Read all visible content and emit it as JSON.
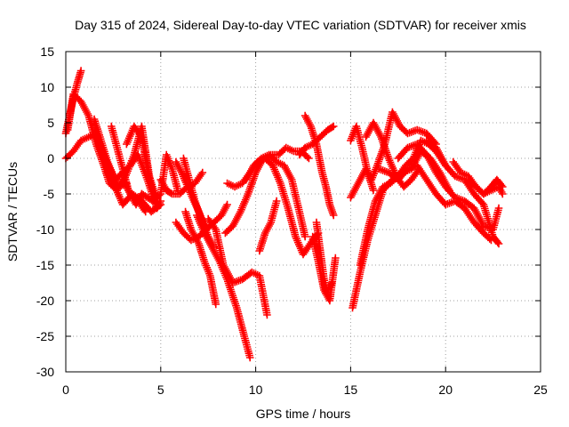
{
  "chart_data": {
    "type": "scatter",
    "title": "Day 315 of 2024, Sidereal Day-to-day VTEC variation (SDTVAR) for receiver xmis",
    "xlabel": "GPS time / hours",
    "ylabel": "SDTVAR / TECUs",
    "xlim": [
      0,
      25
    ],
    "ylim": [
      -30,
      15
    ],
    "xticks": [
      "0",
      "5",
      "10",
      "15",
      "20",
      "25"
    ],
    "yticks": [
      "15",
      "10",
      "5",
      "0",
      "-5",
      "-10",
      "-15",
      "-20",
      "-25",
      "-30"
    ],
    "grid": true,
    "marker": "+",
    "color": "#ff0000",
    "series": [
      {
        "x": [
          0.0,
          0.2,
          0.4,
          0.6,
          0.8
        ],
        "y": [
          3.5,
          6.0,
          8.5,
          10.5,
          12.3
        ]
      },
      {
        "x": [
          0.1,
          0.4,
          0.8,
          1.2,
          1.6,
          2.0,
          2.3,
          2.7,
          3.0,
          3.4,
          3.8,
          4.2
        ],
        "y": [
          4.0,
          9.0,
          8.0,
          6.0,
          2.0,
          -1.0,
          -3.5,
          -4.5,
          -3.0,
          -5.0,
          -6.0,
          -7.5
        ]
      },
      {
        "x": [
          0.0,
          0.4,
          0.8,
          1.2,
          1.6,
          2.0,
          2.4,
          2.8,
          3.2
        ],
        "y": [
          0.0,
          1.0,
          2.5,
          3.0,
          3.5,
          0.5,
          -2.0,
          -4.0,
          -3.5
        ]
      },
      {
        "x": [
          1.5,
          1.8,
          2.2,
          2.6,
          3.0,
          3.4,
          3.8,
          4.3,
          4.8
        ],
        "y": [
          5.5,
          3.0,
          -0.5,
          -3.0,
          -2.0,
          -1.0,
          0.5,
          -3.0,
          -7.0
        ]
      },
      {
        "x": [
          2.4,
          2.7,
          3.0,
          3.3,
          3.7,
          4.0
        ],
        "y": [
          4.5,
          1.5,
          -1.5,
          -4.5,
          -6.5,
          -5.0
        ]
      },
      {
        "x": [
          2.2,
          2.6,
          3.0,
          3.5,
          4.0,
          4.5,
          5.0
        ],
        "y": [
          -2.0,
          -4.0,
          -6.5,
          -5.0,
          -6.0,
          -7.5,
          -6.5
        ]
      },
      {
        "x": [
          3.0,
          3.3,
          3.6,
          4.0,
          4.4,
          4.8
        ],
        "y": [
          -3.5,
          -1.5,
          0.5,
          4.5,
          -2.5,
          -6.0
        ]
      },
      {
        "x": [
          3.2,
          3.6,
          4.0,
          4.4,
          4.8,
          5.0
        ],
        "y": [
          2.0,
          4.5,
          3.0,
          -3.0,
          -7.0,
          -6.0
        ]
      },
      {
        "x": [
          4.0,
          4.6,
          5.0,
          5.3,
          5.6,
          5.9
        ],
        "y": [
          -5.0,
          -6.0,
          -5.0,
          0.5,
          -1.5,
          -4.5
        ]
      },
      {
        "x": [
          5.0,
          5.3,
          5.6,
          6.0,
          6.4,
          6.8,
          7.2
        ],
        "y": [
          -3.0,
          -4.5,
          -5.0,
          -5.0,
          -4.0,
          -3.5,
          -2.0
        ]
      },
      {
        "x": [
          5.8,
          6.1,
          6.5,
          7.0,
          7.4,
          7.8,
          8.2,
          8.5
        ],
        "y": [
          -0.5,
          -2.0,
          -4.5,
          -7.5,
          -10.0,
          -9.0,
          -8.0,
          -6.5
        ]
      },
      {
        "x": [
          6.2,
          6.5,
          6.8,
          7.2,
          7.5,
          7.8
        ],
        "y": [
          0.0,
          -3.0,
          -6.0,
          -9.0,
          -11.0,
          -12.5
        ]
      },
      {
        "x": [
          6.3,
          6.6,
          7.0,
          7.3,
          7.6,
          7.9
        ],
        "y": [
          -7.5,
          -10.0,
          -12.0,
          -14.5,
          -16.5,
          -20.5
        ]
      },
      {
        "x": [
          5.8,
          6.2,
          6.6,
          7.0,
          7.4,
          7.8
        ],
        "y": [
          -9.0,
          -10.5,
          -11.5,
          -11.0,
          -10.0,
          -9.0
        ]
      },
      {
        "x": [
          6.9,
          7.3,
          7.7,
          8.1,
          8.5,
          9.0,
          9.4,
          9.7
        ],
        "y": [
          -8.0,
          -10.5,
          -12.5,
          -14.5,
          -17.0,
          -21.0,
          -25.0,
          -28.0
        ]
      },
      {
        "x": [
          7.5,
          7.9,
          8.3,
          8.8,
          9.3,
          9.8,
          10.2,
          10.6
        ],
        "y": [
          -8.5,
          -10.0,
          -15.0,
          -17.5,
          -17.0,
          -16.0,
          -16.5,
          -22.0
        ]
      },
      {
        "x": [
          8.4,
          8.8,
          9.2,
          9.6,
          10.0,
          10.4,
          10.8,
          11.2,
          11.6,
          12.0,
          12.4,
          12.8
        ],
        "y": [
          -10.5,
          -9.5,
          -7.5,
          -5.0,
          -2.0,
          0.0,
          0.5,
          0.5,
          1.5,
          1.0,
          1.0,
          0.0
        ]
      },
      {
        "x": [
          8.5,
          8.9,
          9.3,
          9.7,
          10.1,
          10.5,
          10.9,
          11.3,
          11.7,
          12.1,
          12.5,
          13.0,
          13.3
        ],
        "y": [
          -3.5,
          -4.0,
          -3.5,
          -2.0,
          -0.5,
          0.0,
          -1.0,
          -3.5,
          -7.0,
          -11.0,
          -13.5,
          -11.5,
          -10.5
        ]
      },
      {
        "x": [
          9.5,
          9.9,
          10.3,
          10.7,
          11.1,
          11.5,
          11.9,
          12.3,
          12.6
        ],
        "y": [
          -3.0,
          -1.0,
          0.0,
          0.5,
          -0.5,
          -1.0,
          -3.0,
          -7.5,
          -11.0
        ]
      },
      {
        "x": [
          10.2,
          10.5,
          10.8,
          11.1
        ],
        "y": [
          -13.0,
          -10.5,
          -9.0,
          -6.0
        ]
      },
      {
        "x": [
          12.3,
          12.6,
          13.0,
          13.4,
          13.8,
          14.1
        ],
        "y": [
          0.5,
          1.5,
          2.0,
          3.0,
          4.0,
          4.5
        ]
      },
      {
        "x": [
          12.6,
          12.9,
          13.2,
          13.5,
          13.7,
          13.9,
          14.1
        ],
        "y": [
          6.0,
          4.5,
          2.0,
          -2.0,
          -4.0,
          -6.5,
          -8.0
        ]
      },
      {
        "x": [
          13.0,
          13.3,
          13.6,
          13.9,
          14.2
        ],
        "y": [
          -11.0,
          -14.5,
          -18.5,
          -20.0,
          -14.0
        ]
      },
      {
        "x": [
          13.2,
          13.5,
          13.7,
          14.0
        ],
        "y": [
          -9.0,
          -15.0,
          -19.0,
          -17.5
        ]
      },
      {
        "x": [
          15.0,
          15.3,
          15.6,
          15.9,
          16.2
        ],
        "y": [
          2.5,
          4.5,
          1.5,
          -2.0,
          -4.5
        ]
      },
      {
        "x": [
          15.0,
          15.4,
          15.8,
          16.1,
          16.4,
          16.8,
          17.2,
          17.6,
          18.0,
          18.5,
          19.0,
          19.5
        ],
        "y": [
          -5.5,
          -3.5,
          -1.5,
          -3.0,
          -1.0,
          2.0,
          6.5,
          4.5,
          3.5,
          4.0,
          3.5,
          2.0
        ]
      },
      {
        "x": [
          15.1,
          15.5,
          15.9,
          16.3,
          16.7,
          17.2,
          17.7,
          18.2,
          18.7,
          19.2,
          19.7,
          20.2
        ],
        "y": [
          -21.0,
          -16.0,
          -11.5,
          -8.0,
          -4.5,
          -3.0,
          -2.0,
          -1.5,
          1.0,
          0.0,
          -2.0,
          -4.5
        ]
      },
      {
        "x": [
          15.5,
          15.9,
          16.3,
          16.7,
          17.1,
          17.5,
          17.9,
          18.3,
          18.7,
          19.1,
          19.5,
          20.0
        ],
        "y": [
          -15.0,
          -10.0,
          -6.0,
          -4.0,
          -3.5,
          -2.5,
          -1.0,
          0.0,
          2.5,
          2.0,
          1.0,
          -1.0
        ]
      },
      {
        "x": [
          15.8,
          16.2,
          16.6,
          17.0,
          17.4,
          17.8,
          18.2,
          18.6
        ],
        "y": [
          3.0,
          5.0,
          3.0,
          0.0,
          -2.5,
          -4.0,
          -3.0,
          -1.5
        ]
      },
      {
        "x": [
          16.5,
          17.0,
          17.5,
          18.0,
          18.5,
          19.0,
          19.5,
          20.0,
          20.5,
          21.0,
          21.5,
          22.0,
          22.4
        ],
        "y": [
          -1.5,
          -2.0,
          -3.0,
          -1.5,
          -1.0,
          -3.0,
          -5.0,
          -6.5,
          -6.0,
          -7.0,
          -9.0,
          -10.5,
          -11.5
        ]
      },
      {
        "x": [
          17.5,
          18.0,
          18.5,
          19.0,
          19.5,
          20.0,
          20.5,
          21.0,
          21.5,
          22.0,
          22.5,
          22.8
        ],
        "y": [
          0.0,
          1.5,
          2.0,
          0.5,
          -2.0,
          -4.0,
          -5.5,
          -6.0,
          -7.0,
          -9.5,
          -10.0,
          -7.0
        ]
      },
      {
        "x": [
          19.0,
          19.5,
          20.0,
          20.5,
          21.0,
          21.5,
          22.0,
          22.5,
          22.8
        ],
        "y": [
          2.5,
          1.5,
          -1.0,
          -2.5,
          -3.0,
          -5.0,
          -6.5,
          -11.0,
          -12.0
        ]
      },
      {
        "x": [
          20.4,
          20.8,
          21.2,
          21.6,
          22.0,
          22.4,
          22.8,
          23.0
        ],
        "y": [
          -0.5,
          -2.0,
          -2.5,
          -4.0,
          -5.0,
          -4.5,
          -4.0,
          -5.0
        ]
      },
      {
        "x": [
          21.2,
          21.6,
          22.0,
          22.4,
          22.7,
          23.0
        ],
        "y": [
          -3.0,
          -4.0,
          -5.0,
          -4.0,
          -3.0,
          -4.0
        ]
      }
    ]
  }
}
